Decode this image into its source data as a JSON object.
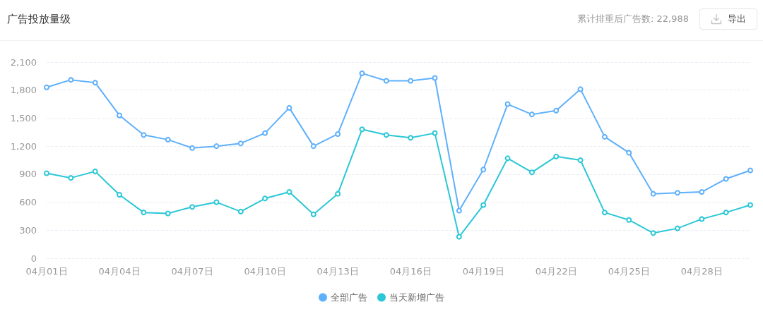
{
  "chart_data": {
    "type": "line",
    "title": "广告投放量级",
    "annotations": [
      "累计排重后广告数: 22,988",
      "导出"
    ],
    "categories": [
      "04月01日",
      null,
      null,
      "04月04日",
      null,
      null,
      "04月07日",
      null,
      null,
      "04月10日",
      null,
      null,
      "04月13日",
      null,
      null,
      "04月16日",
      null,
      null,
      "04月19日",
      null,
      null,
      "04月22日",
      null,
      null,
      "04月25日",
      null,
      null,
      "04月28日",
      null,
      null
    ],
    "series": [
      {
        "name": "全部广告",
        "color": "#5fb0fb",
        "values": [
          1830,
          1910,
          1880,
          1530,
          1320,
          1270,
          1180,
          1200,
          1230,
          1340,
          1610,
          1200,
          1330,
          1980,
          1900,
          1900,
          1930,
          510,
          950,
          1650,
          1540,
          1580,
          1810,
          1300,
          1130,
          690,
          700,
          710,
          850,
          940
        ]
      },
      {
        "name": "当天新增广告",
        "color": "#2bc7d6",
        "values": [
          910,
          860,
          930,
          680,
          490,
          480,
          550,
          600,
          500,
          640,
          710,
          470,
          690,
          1380,
          1320,
          1290,
          1340,
          230,
          570,
          1070,
          920,
          1090,
          1050,
          490,
          410,
          270,
          320,
          420,
          490,
          570
        ]
      }
    ],
    "ylim": [
      0,
      2100
    ],
    "yticks": [
      0,
      300,
      600,
      900,
      {
        "value": 1200,
        "label": "1,200"
      },
      {
        "value": 1500,
        "label": "1,500"
      },
      {
        "value": 1800,
        "label": "1,800"
      },
      {
        "value": 2100,
        "label": "2,100"
      }
    ],
    "grid": "y",
    "legend": "bottom",
    "marker": "circle",
    "line_style": "solid"
  }
}
